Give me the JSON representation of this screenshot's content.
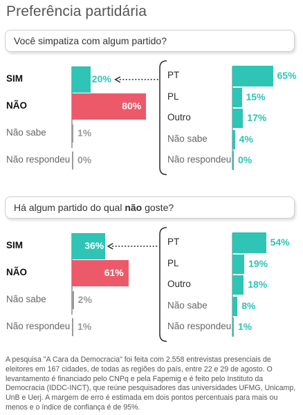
{
  "title": "Preferência partidária",
  "colors": {
    "teal": "#2ec4b6",
    "red": "#ec5a6a",
    "gray": "#9a9a9a",
    "ink": "#1a1a1a"
  },
  "chart_data": [
    {
      "type": "bar",
      "question": "Você simpatiza com algum partido?",
      "categories": [
        "SIM",
        "NÃO",
        "Não sabe",
        "Não respondeu"
      ],
      "values": [
        20,
        80,
        1,
        0
      ],
      "labels": [
        "20%",
        "80%",
        "1%",
        "0%"
      ],
      "breakdown": {
        "categories": [
          "PT",
          "PL",
          "Outro",
          "Não sabe",
          "Não respondeu"
        ],
        "values": [
          65,
          15,
          17,
          4,
          0
        ],
        "labels": [
          "65%",
          "15%",
          "17%",
          "4%",
          "0%"
        ]
      }
    },
    {
      "type": "bar",
      "question_pre": "Há algum partido do qual ",
      "question_bold": "não",
      "question_post": " goste?",
      "categories": [
        "SIM",
        "NÃO",
        "Não sabe",
        "Não respondeu"
      ],
      "values": [
        36,
        61,
        2,
        1
      ],
      "labels": [
        "36%",
        "61%",
        "2%",
        "1%"
      ],
      "breakdown": {
        "categories": [
          "PT",
          "PL",
          "Outro",
          "Não sabe",
          "Não respondeu"
        ],
        "values": [
          54,
          19,
          18,
          8,
          1
        ],
        "labels": [
          "54%",
          "19%",
          "18%",
          "8%",
          "1%"
        ]
      }
    }
  ],
  "note": "A pesquisa \"A Cara da Democracia\" foi feita com 2.558 entrevistas presenciais de eleitores em 167 cidades, de todas as regiões do país, entre 22 e 29 de agosto. O levantamento é financiado pelo CNPq e pela Fapemig e é feito pelo Instituto da Democracia (IDDC-INCT), que reúne pesquisadores das universidades UFMG, Unicamp, UnB e Uerj. A margem de erro é estimada em dois pontos percentuais para mais ou menos e o índice de confiança é de 95%."
}
